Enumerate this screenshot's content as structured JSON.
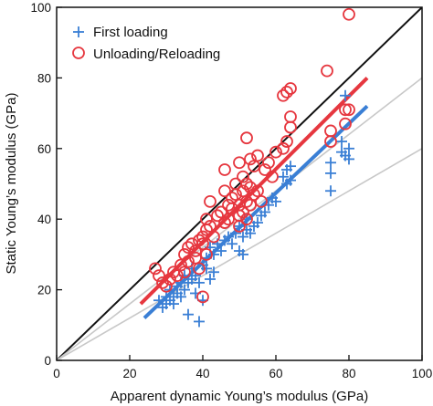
{
  "chart_data": {
    "type": "scatter",
    "title": "",
    "xlabel": "Apparent dynamic Young’s modulus (GPa)",
    "ylabel": "Static Young’s modulus (GPa)",
    "xlim": [
      0,
      100
    ],
    "ylim": [
      0,
      100
    ],
    "xticks": [
      "0",
      "20",
      "40",
      "60",
      "80",
      "100"
    ],
    "yticks": [
      "0",
      "20",
      "40",
      "60",
      "80",
      "100"
    ],
    "grid": false,
    "legend_position": "top-left",
    "series": [
      {
        "name": "First loading",
        "marker": "plus",
        "color": "#3a7fd5",
        "points": [
          [
            28,
            17
          ],
          [
            29,
            15
          ],
          [
            30,
            16
          ],
          [
            30,
            18
          ],
          [
            31,
            17
          ],
          [
            31,
            20
          ],
          [
            32,
            18
          ],
          [
            32,
            16
          ],
          [
            33,
            21
          ],
          [
            33,
            19
          ],
          [
            34,
            22
          ],
          [
            34,
            18
          ],
          [
            35,
            20
          ],
          [
            35,
            24
          ],
          [
            36,
            22
          ],
          [
            36,
            13
          ],
          [
            37,
            23
          ],
          [
            37,
            26
          ],
          [
            38,
            19
          ],
          [
            38,
            24
          ],
          [
            39,
            22
          ],
          [
            39,
            11
          ],
          [
            40,
            27
          ],
          [
            40,
            17
          ],
          [
            41,
            26
          ],
          [
            41,
            29
          ],
          [
            42,
            23
          ],
          [
            42,
            32
          ],
          [
            43,
            25
          ],
          [
            43,
            30
          ],
          [
            44,
            33
          ],
          [
            45,
            31
          ],
          [
            46,
            34
          ],
          [
            47,
            35
          ],
          [
            48,
            33
          ],
          [
            49,
            36
          ],
          [
            50,
            38
          ],
          [
            50,
            31
          ],
          [
            51,
            35
          ],
          [
            51,
            30
          ],
          [
            52,
            37
          ],
          [
            52,
            40
          ],
          [
            53,
            36
          ],
          [
            54,
            38
          ],
          [
            55,
            39
          ],
          [
            56,
            41
          ],
          [
            57,
            42
          ],
          [
            58,
            44
          ],
          [
            59,
            46
          ],
          [
            60,
            45
          ],
          [
            62,
            52
          ],
          [
            63,
            54
          ],
          [
            63,
            50
          ],
          [
            64,
            55
          ],
          [
            64,
            51
          ],
          [
            75,
            56
          ],
          [
            75,
            53
          ],
          [
            75,
            48
          ],
          [
            78,
            59
          ],
          [
            78,
            62
          ],
          [
            79,
            75
          ],
          [
            79,
            58
          ],
          [
            80,
            60
          ],
          [
            80,
            57
          ]
        ],
        "fit_line": [
          [
            24,
            12
          ],
          [
            85,
            72
          ]
        ]
      },
      {
        "name": "Unloading/Reloading",
        "marker": "circle",
        "color": "#e6373f",
        "points": [
          [
            27,
            26
          ],
          [
            28,
            24
          ],
          [
            29,
            22
          ],
          [
            30,
            21
          ],
          [
            31,
            23
          ],
          [
            32,
            25
          ],
          [
            33,
            24
          ],
          [
            34,
            27
          ],
          [
            35,
            30
          ],
          [
            35,
            25
          ],
          [
            36,
            32
          ],
          [
            36,
            28
          ],
          [
            37,
            33
          ],
          [
            38,
            31
          ],
          [
            38,
            29
          ],
          [
            39,
            34
          ],
          [
            39,
            26
          ],
          [
            40,
            35
          ],
          [
            40,
            33
          ],
          [
            40,
            18
          ],
          [
            41,
            40
          ],
          [
            41,
            37
          ],
          [
            41,
            30
          ],
          [
            42,
            45
          ],
          [
            42,
            38
          ],
          [
            43,
            35
          ],
          [
            44,
            41
          ],
          [
            45,
            42
          ],
          [
            46,
            39
          ],
          [
            46,
            48
          ],
          [
            46,
            54
          ],
          [
            47,
            44
          ],
          [
            47,
            40
          ],
          [
            48,
            46
          ],
          [
            48,
            43
          ],
          [
            49,
            50
          ],
          [
            49,
            47
          ],
          [
            50,
            41
          ],
          [
            50,
            44
          ],
          [
            50,
            38
          ],
          [
            50,
            56
          ],
          [
            51,
            42
          ],
          [
            51,
            48
          ],
          [
            51,
            52
          ],
          [
            52,
            40
          ],
          [
            52,
            45
          ],
          [
            52,
            50
          ],
          [
            52,
            63
          ],
          [
            53,
            44
          ],
          [
            53,
            49
          ],
          [
            53,
            57
          ],
          [
            54,
            47
          ],
          [
            54,
            55
          ],
          [
            55,
            48
          ],
          [
            55,
            58
          ],
          [
            56,
            45
          ],
          [
            57,
            54
          ],
          [
            58,
            56
          ],
          [
            59,
            52
          ],
          [
            60,
            59
          ],
          [
            62,
            60
          ],
          [
            62,
            75
          ],
          [
            63,
            62
          ],
          [
            63,
            76
          ],
          [
            64,
            69
          ],
          [
            64,
            66
          ],
          [
            64,
            77
          ],
          [
            74,
            82
          ],
          [
            75,
            65
          ],
          [
            75,
            62
          ],
          [
            79,
            67
          ],
          [
            79,
            71
          ],
          [
            80,
            98
          ],
          [
            80,
            71
          ]
        ],
        "fit_line": [
          [
            23,
            16
          ],
          [
            85,
            80
          ]
        ]
      }
    ],
    "reference_lines": [
      {
        "color": "#111111",
        "points": [
          [
            0,
            0
          ],
          [
            100,
            100
          ]
        ]
      },
      {
        "color": "#c8c8c8",
        "points": [
          [
            0,
            0
          ],
          [
            100,
            80
          ]
        ]
      },
      {
        "color": "#c8c8c8",
        "points": [
          [
            0,
            0
          ],
          [
            100,
            60
          ]
        ]
      }
    ]
  }
}
